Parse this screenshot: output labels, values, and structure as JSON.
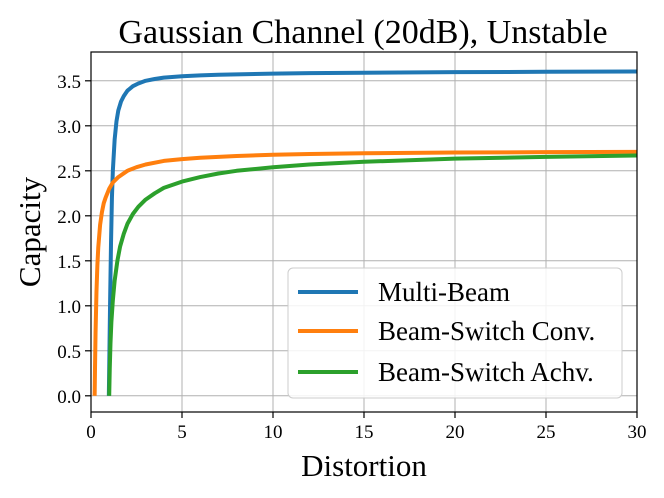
{
  "chart_data": {
    "type": "line",
    "title": "Gaussian Channel (20dB), Unstable",
    "xlabel": "Distortion",
    "ylabel": "Capacity",
    "xlim": [
      0,
      30
    ],
    "ylim": [
      -0.18,
      3.82
    ],
    "xticks": [
      0,
      5,
      10,
      15,
      20,
      25,
      30
    ],
    "xtick_labels": [
      "0",
      "5",
      "10",
      "15",
      "20",
      "25",
      "30"
    ],
    "yticks": [
      0.0,
      0.5,
      1.0,
      1.5,
      2.0,
      2.5,
      3.0,
      3.5
    ],
    "ytick_labels": [
      "0.0",
      "0.5",
      "1.0",
      "1.5",
      "2.0",
      "2.5",
      "3.0",
      "3.5"
    ],
    "grid": true,
    "legend_position": "lower-right",
    "series": [
      {
        "name": "Multi-Beam",
        "color": "#1f77b4",
        "x": [
          0.98,
          1.02,
          1.05,
          1.1,
          1.15,
          1.2,
          1.3,
          1.4,
          1.5,
          1.65,
          1.8,
          2.0,
          2.3,
          2.6,
          3.0,
          3.5,
          4.0,
          5.0,
          6.0,
          7.0,
          8.0,
          10.0,
          12.0,
          15.0,
          20.0,
          25.0,
          30.0
        ],
        "y": [
          0.0,
          0.6,
          1.05,
          1.7,
          2.2,
          2.5,
          2.85,
          3.05,
          3.17,
          3.27,
          3.33,
          3.39,
          3.44,
          3.47,
          3.5,
          3.52,
          3.535,
          3.55,
          3.56,
          3.567,
          3.572,
          3.58,
          3.585,
          3.59,
          3.596,
          3.6,
          3.603
        ]
      },
      {
        "name": "Beam-Switch Conv.",
        "color": "#ff7f0e",
        "x": [
          0.2,
          0.22,
          0.25,
          0.3,
          0.35,
          0.4,
          0.5,
          0.6,
          0.7,
          0.8,
          1.0,
          1.2,
          1.5,
          2.0,
          2.5,
          3.0,
          4.0,
          5.0,
          6.0,
          8.0,
          10.0,
          12.0,
          15.0,
          20.0,
          25.0,
          30.0
        ],
        "y": [
          0.0,
          0.3,
          0.7,
          1.15,
          1.45,
          1.65,
          1.9,
          2.04,
          2.14,
          2.2,
          2.3,
          2.37,
          2.43,
          2.5,
          2.54,
          2.57,
          2.61,
          2.63,
          2.645,
          2.665,
          2.678,
          2.687,
          2.695,
          2.703,
          2.707,
          2.71
        ]
      },
      {
        "name": "Beam-Switch Achv.",
        "color": "#2ca02c",
        "x": [
          1.0,
          1.03,
          1.07,
          1.12,
          1.2,
          1.3,
          1.45,
          1.6,
          1.8,
          2.0,
          2.3,
          2.6,
          3.0,
          3.5,
          4.0,
          5.0,
          6.0,
          7.0,
          8.0,
          10.0,
          12.0,
          15.0,
          20.0,
          25.0,
          30.0
        ],
        "y": [
          0.0,
          0.3,
          0.58,
          0.82,
          1.06,
          1.28,
          1.5,
          1.66,
          1.8,
          1.91,
          2.02,
          2.1,
          2.18,
          2.25,
          2.31,
          2.38,
          2.43,
          2.47,
          2.5,
          2.54,
          2.57,
          2.6,
          2.635,
          2.655,
          2.67
        ]
      }
    ]
  }
}
